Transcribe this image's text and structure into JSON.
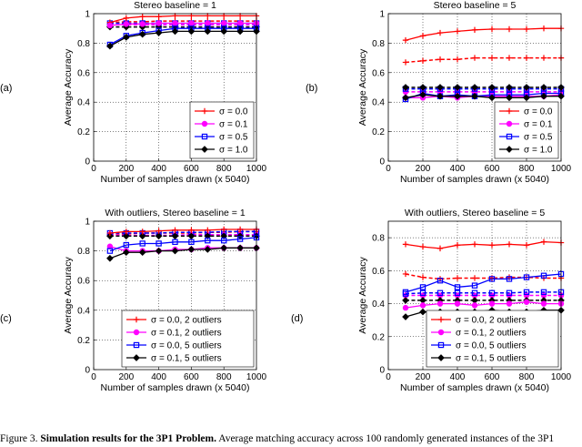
{
  "caption": {
    "label": "Figure 3.",
    "title": "Simulation results for the 3P1 Problem.",
    "text": "Average matching accuracy across 100 randomly generated instances of the 3P1"
  },
  "chart_data": [
    {
      "type": "line",
      "panel_label": "(a)",
      "title": "Stereo baseline = 1",
      "xlabel": "Number of samples drawn (x 5040)",
      "ylabel": "Average Accuracy",
      "xlim": [
        0,
        1000
      ],
      "ylim": [
        0,
        1
      ],
      "xticks": [
        0,
        200,
        400,
        600,
        800,
        1000
      ],
      "yticks": [
        0,
        0.2,
        0.4,
        0.6,
        0.8,
        1
      ],
      "ytick_labels": [
        "0",
        "0.2",
        "0.4",
        "0.6",
        "0.8",
        "1"
      ],
      "legend_position": "bottom-right",
      "x": [
        100,
        200,
        300,
        400,
        500,
        600,
        700,
        800,
        900,
        1000
      ],
      "series": [
        {
          "name": "σ = 0.0",
          "color": "#ff0000",
          "marker": "plus",
          "style": "solid",
          "values": [
            0.94,
            0.97,
            0.98,
            0.98,
            0.985,
            0.985,
            0.985,
            0.985,
            0.985,
            0.985
          ]
        },
        {
          "name": "σ = 0.1",
          "color": "#ff00ff",
          "marker": "circle",
          "style": "solid",
          "values": [
            0.92,
            0.93,
            0.93,
            0.935,
            0.935,
            0.935,
            0.935,
            0.935,
            0.935,
            0.935
          ]
        },
        {
          "name": "σ = 0.5",
          "color": "#0000ff",
          "marker": "square",
          "style": "solid",
          "values": [
            0.79,
            0.85,
            0.87,
            0.885,
            0.9,
            0.9,
            0.9,
            0.9,
            0.9,
            0.9
          ]
        },
        {
          "name": "σ = 1.0",
          "color": "#000000",
          "marker": "diamond",
          "style": "solid",
          "values": [
            0.78,
            0.84,
            0.86,
            0.87,
            0.88,
            0.88,
            0.88,
            0.88,
            0.88,
            0.88
          ]
        },
        {
          "name": "",
          "color": "#ff0000",
          "marker": "plus",
          "style": "dashed",
          "values": [
            0.94,
            0.945,
            0.945,
            0.95,
            0.95,
            0.95,
            0.95,
            0.95,
            0.95,
            0.95
          ]
        },
        {
          "name": "",
          "color": "#ff00ff",
          "marker": "circle",
          "style": "dashed",
          "values": [
            0.925,
            0.925,
            0.925,
            0.925,
            0.925,
            0.925,
            0.925,
            0.925,
            0.925,
            0.925
          ]
        },
        {
          "name": "",
          "color": "#0000ff",
          "marker": "square",
          "style": "dashed",
          "values": [
            0.935,
            0.935,
            0.935,
            0.935,
            0.935,
            0.935,
            0.935,
            0.935,
            0.935,
            0.935
          ]
        },
        {
          "name": "",
          "color": "#000000",
          "marker": "diamond",
          "style": "dashed",
          "values": [
            0.91,
            0.91,
            0.91,
            0.91,
            0.91,
            0.91,
            0.91,
            0.91,
            0.91,
            0.91
          ]
        }
      ]
    },
    {
      "type": "line",
      "panel_label": "(b)",
      "title": "Stereo baseline = 5",
      "xlabel": "Number of samples drawn (x 5040)",
      "ylabel": "Average Accuracy",
      "xlim": [
        0,
        1000
      ],
      "ylim": [
        0,
        1
      ],
      "xticks": [
        0,
        200,
        400,
        600,
        800,
        1000
      ],
      "yticks": [
        0,
        0.2,
        0.4,
        0.6,
        0.8,
        1
      ],
      "ytick_labels": [
        "0",
        "0.2",
        "0.4",
        "0.6",
        "0.8",
        "1"
      ],
      "legend_position": "bottom-right",
      "x": [
        100,
        200,
        300,
        400,
        500,
        600,
        700,
        800,
        900,
        1000
      ],
      "series": [
        {
          "name": "σ = 0.0",
          "color": "#ff0000",
          "marker": "plus",
          "style": "solid",
          "values": [
            0.82,
            0.85,
            0.87,
            0.88,
            0.89,
            0.895,
            0.895,
            0.895,
            0.9,
            0.9
          ]
        },
        {
          "name": "σ = 0.1",
          "color": "#ff00ff",
          "marker": "circle",
          "style": "solid",
          "values": [
            0.43,
            0.43,
            0.44,
            0.43,
            0.44,
            0.44,
            0.44,
            0.44,
            0.44,
            0.45
          ]
        },
        {
          "name": "σ = 0.5",
          "color": "#0000ff",
          "marker": "square",
          "style": "solid",
          "values": [
            0.42,
            0.46,
            0.44,
            0.45,
            0.44,
            0.45,
            0.45,
            0.45,
            0.46,
            0.46
          ]
        },
        {
          "name": "σ = 1.0",
          "color": "#000000",
          "marker": "diamond",
          "style": "solid",
          "values": [
            0.43,
            0.45,
            0.44,
            0.44,
            0.44,
            0.43,
            0.43,
            0.43,
            0.44,
            0.44
          ]
        },
        {
          "name": "",
          "color": "#ff0000",
          "marker": "plus",
          "style": "dashed",
          "values": [
            0.67,
            0.68,
            0.69,
            0.69,
            0.7,
            0.7,
            0.7,
            0.7,
            0.7,
            0.7
          ]
        },
        {
          "name": "",
          "color": "#ff00ff",
          "marker": "circle",
          "style": "dashed",
          "values": [
            0.47,
            0.47,
            0.47,
            0.47,
            0.47,
            0.47,
            0.47,
            0.47,
            0.47,
            0.47
          ]
        },
        {
          "name": "",
          "color": "#0000ff",
          "marker": "square",
          "style": "dashed",
          "values": [
            0.49,
            0.49,
            0.49,
            0.49,
            0.49,
            0.49,
            0.49,
            0.49,
            0.49,
            0.49
          ]
        },
        {
          "name": "",
          "color": "#000000",
          "marker": "diamond",
          "style": "dashed",
          "values": [
            0.5,
            0.5,
            0.5,
            0.5,
            0.5,
            0.5,
            0.5,
            0.5,
            0.5,
            0.5
          ]
        }
      ]
    },
    {
      "type": "line",
      "panel_label": "(c)",
      "title": "With outliers, Stereo baseline = 1",
      "xlabel": "Number of samples drawn (x 5040)",
      "ylabel": "Average Accuracy",
      "xlim": [
        0,
        1000
      ],
      "ylim": [
        0,
        1
      ],
      "xticks": [
        0,
        200,
        400,
        600,
        800,
        1000
      ],
      "yticks": [
        0,
        0.2,
        0.4,
        0.6,
        0.8,
        1
      ],
      "ytick_labels": [
        "0",
        "0.2",
        "0.4",
        "0.6",
        "0.8",
        "1"
      ],
      "legend_position": "bottom-right",
      "x": [
        100,
        200,
        300,
        400,
        500,
        600,
        700,
        800,
        900,
        1000
      ],
      "series": [
        {
          "name": "σ = 0.0, 2 outliers",
          "color": "#ff0000",
          "marker": "plus",
          "style": "solid",
          "values": [
            0.92,
            0.93,
            0.93,
            0.935,
            0.94,
            0.94,
            0.94,
            0.945,
            0.945,
            0.945
          ]
        },
        {
          "name": "σ = 0.1, 2 outliers",
          "color": "#ff00ff",
          "marker": "circle",
          "style": "solid",
          "values": [
            0.83,
            0.8,
            0.8,
            0.8,
            0.81,
            0.81,
            0.82,
            0.82,
            0.82,
            0.82
          ]
        },
        {
          "name": "σ = 0.0, 5 outliers",
          "color": "#0000ff",
          "marker": "square",
          "style": "solid",
          "values": [
            0.8,
            0.84,
            0.85,
            0.85,
            0.86,
            0.86,
            0.87,
            0.87,
            0.88,
            0.89
          ]
        },
        {
          "name": "σ = 0.1, 5 outliers",
          "color": "#000000",
          "marker": "diamond",
          "style": "solid",
          "values": [
            0.75,
            0.79,
            0.79,
            0.8,
            0.8,
            0.81,
            0.81,
            0.82,
            0.82,
            0.82
          ]
        },
        {
          "name": "",
          "color": "#ff0000",
          "marker": "plus",
          "style": "dashed",
          "values": [
            0.91,
            0.915,
            0.92,
            0.92,
            0.92,
            0.92,
            0.925,
            0.925,
            0.93,
            0.93
          ]
        },
        {
          "name": "",
          "color": "#ff00ff",
          "marker": "circle",
          "style": "dashed",
          "values": [
            0.91,
            0.905,
            0.905,
            0.905,
            0.905,
            0.91,
            0.91,
            0.91,
            0.91,
            0.91
          ]
        },
        {
          "name": "",
          "color": "#0000ff",
          "marker": "square",
          "style": "dashed",
          "values": [
            0.92,
            0.92,
            0.92,
            0.92,
            0.925,
            0.925,
            0.925,
            0.93,
            0.93,
            0.93
          ]
        },
        {
          "name": "",
          "color": "#000000",
          "marker": "diamond",
          "style": "dashed",
          "values": [
            0.9,
            0.9,
            0.9,
            0.9,
            0.9,
            0.9,
            0.9,
            0.9,
            0.9,
            0.9
          ]
        }
      ]
    },
    {
      "type": "line",
      "panel_label": "(d)",
      "title": "With outliers, Stereo baseline = 5",
      "xlabel": "Number of samples drawn (x 5040)",
      "ylabel": "Average Accuracy",
      "xlim": [
        0,
        1000
      ],
      "ylim": [
        0,
        0.9
      ],
      "xticks": [
        0,
        200,
        400,
        600,
        800,
        1000
      ],
      "yticks": [
        0,
        0.2,
        0.4,
        0.6,
        0.8
      ],
      "ytick_labels": [
        "0",
        "0.2",
        "0.4",
        "0.6",
        "0.8"
      ],
      "legend_position": "bottom-right",
      "x": [
        100,
        200,
        300,
        400,
        500,
        600,
        700,
        800,
        900,
        1000
      ],
      "series": [
        {
          "name": "σ = 0.0, 2 outliers",
          "color": "#ff0000",
          "marker": "plus",
          "style": "solid",
          "values": [
            0.76,
            0.745,
            0.735,
            0.755,
            0.76,
            0.755,
            0.76,
            0.755,
            0.775,
            0.77
          ]
        },
        {
          "name": "σ = 0.1, 2 outliers",
          "color": "#ff00ff",
          "marker": "circle",
          "style": "solid",
          "values": [
            0.375,
            0.39,
            0.4,
            0.4,
            0.39,
            0.4,
            0.4,
            0.41,
            0.4,
            0.4
          ]
        },
        {
          "name": "σ = 0.0, 5 outliers",
          "color": "#0000ff",
          "marker": "square",
          "style": "solid",
          "values": [
            0.47,
            0.5,
            0.54,
            0.5,
            0.51,
            0.55,
            0.55,
            0.56,
            0.57,
            0.58
          ]
        },
        {
          "name": "σ = 0.1, 5 outliers",
          "color": "#000000",
          "marker": "diamond",
          "style": "solid",
          "values": [
            0.32,
            0.35,
            0.35,
            0.35,
            0.35,
            0.36,
            0.35,
            0.35,
            0.36,
            0.36
          ]
        },
        {
          "name": "",
          "color": "#ff0000",
          "marker": "plus",
          "style": "dashed",
          "values": [
            0.58,
            0.56,
            0.55,
            0.555,
            0.555,
            0.555,
            0.56,
            0.56,
            0.555,
            0.555
          ]
        },
        {
          "name": "",
          "color": "#ff00ff",
          "marker": "circle",
          "style": "dashed",
          "values": [
            0.45,
            0.45,
            0.45,
            0.45,
            0.45,
            0.45,
            0.45,
            0.45,
            0.45,
            0.45
          ]
        },
        {
          "name": "",
          "color": "#0000ff",
          "marker": "square",
          "style": "dashed",
          "values": [
            0.46,
            0.465,
            0.465,
            0.465,
            0.465,
            0.465,
            0.465,
            0.47,
            0.47,
            0.47
          ]
        },
        {
          "name": "",
          "color": "#000000",
          "marker": "diamond",
          "style": "dashed",
          "values": [
            0.42,
            0.42,
            0.42,
            0.42,
            0.42,
            0.42,
            0.42,
            0.42,
            0.42,
            0.42
          ]
        }
      ]
    }
  ]
}
